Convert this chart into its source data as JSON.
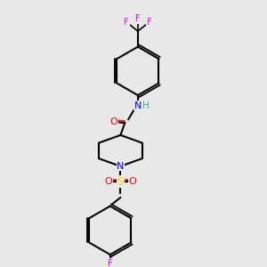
{
  "bg_color": "#e8e8e8",
  "bond_color": "#000000",
  "colors": {
    "N": "#0000FF",
    "O": "#FF0000",
    "F": "#FF00FF",
    "S": "#FFD700",
    "H": "#20B2AA"
  },
  "lw": 1.5,
  "lw2": 1.2
}
